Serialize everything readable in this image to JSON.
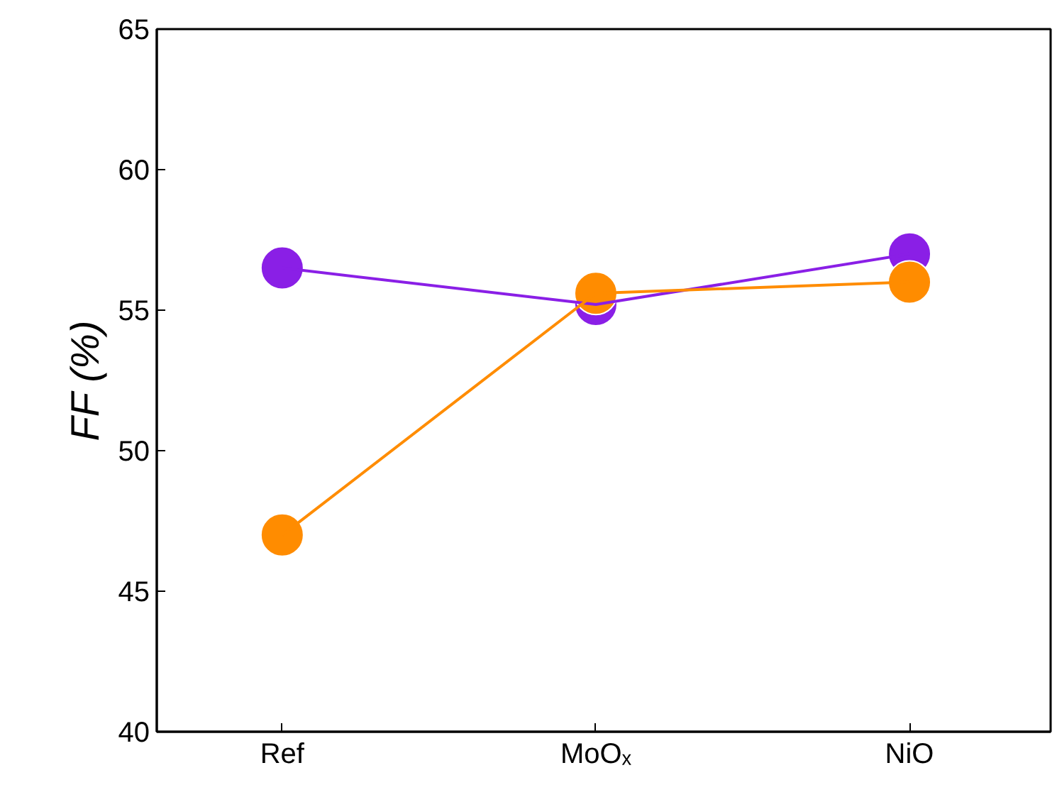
{
  "chart_data": {
    "type": "line",
    "ylabel": "FF (%)",
    "categories": [
      "Ref",
      "MoOₓ",
      "NiO"
    ],
    "series": [
      {
        "color": "#8a1fe6",
        "values": [
          56.5,
          55.2,
          57.0
        ]
      },
      {
        "color": "#ff8c00",
        "values": [
          47.0,
          55.6,
          56.0
        ]
      }
    ],
    "ylim": [
      40,
      65
    ],
    "yticks": [
      40,
      45,
      50,
      55,
      60,
      65
    ],
    "grid": false,
    "marker": "circle",
    "line_style": "solid"
  }
}
